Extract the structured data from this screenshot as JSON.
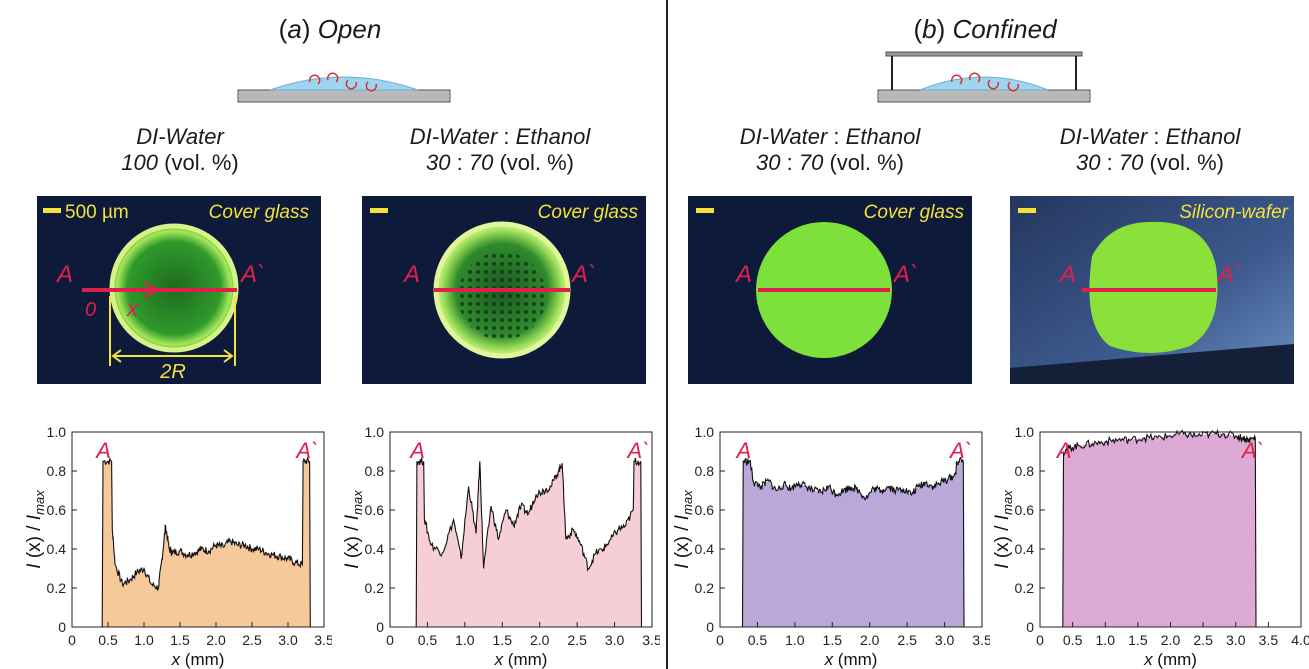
{
  "panels": [
    {
      "label_letter": "a",
      "label_word": "Open"
    },
    {
      "label_letter": "b",
      "label_word": "Confined"
    }
  ],
  "conditions": [
    {
      "line1_a": "DI-Water",
      "line1_sep": "",
      "line1_b": "",
      "line2_num": "100",
      "line2_sep": "",
      "line2_num2": "",
      "line2_unit": "(vol. %)"
    },
    {
      "line1_a": "DI-Water",
      "line1_sep": " : ",
      "line1_b": "Ethanol",
      "line2_num": "30",
      "line2_sep": " : ",
      "line2_num2": "70",
      "line2_unit": "(vol. %)"
    },
    {
      "line1_a": "DI-Water",
      "line1_sep": " : ",
      "line1_b": "Ethanol",
      "line2_num": "30",
      "line2_sep": " : ",
      "line2_num2": "70",
      "line2_unit": "(vol. %)"
    },
    {
      "line1_a": "DI-Water",
      "line1_sep": " : ",
      "line1_b": "Ethanol",
      "line2_num": "30",
      "line2_sep": " : ",
      "line2_num2": "70",
      "line2_unit": "(vol. %)"
    }
  ],
  "images": [
    {
      "substrate": "Cover glass",
      "scale_label": "500 µm",
      "label_left": "A",
      "label_right": "A`",
      "origin_label": "0",
      "x_label": "x",
      "diameter_label": "2R"
    },
    {
      "substrate": "Cover glass",
      "label_left": "A",
      "label_right": "A`"
    },
    {
      "substrate": "Cover glass",
      "label_left": "A",
      "label_right": "A`"
    },
    {
      "substrate": "Silicon-wafer",
      "label_left": "A",
      "label_right": "A`"
    }
  ],
  "colors": {
    "fluorescence_green": "#6fd62a",
    "line_red": "#e0204c",
    "label_yellow": "#f3e23a",
    "background_blue": "#0d1a3a",
    "fill_a": "#f6c99a",
    "fill_b": "#f6cfd6",
    "fill_c": "#b9a8d8",
    "fill_d": "#dcaad4"
  },
  "chart_data": [
    {
      "type": "area",
      "xlabel": "x (mm)",
      "ylabel": "I (x) / I_max",
      "ylabel_main": "I",
      "ylabel_x": " (x) / ",
      "ylabel_sub_main": "I",
      "ylabel_sub": "max",
      "xlim": [
        0,
        3.5
      ],
      "ylim": [
        0,
        1.0
      ],
      "xticks": [
        "0",
        "0.5",
        "1.0",
        "1.5",
        "2.0",
        "2.5",
        "3.0",
        "3.5"
      ],
      "yticks": [
        "0",
        "0.2",
        "0.4",
        "0.6",
        "0.8",
        "1.0"
      ],
      "marker_left": "A",
      "marker_right": "A`",
      "fill": "#f6c99a",
      "x": [
        0.42,
        0.43,
        0.55,
        0.56,
        0.6,
        0.7,
        0.8,
        0.9,
        1.0,
        1.1,
        1.2,
        1.25,
        1.3,
        1.35,
        1.4,
        1.5,
        1.6,
        1.7,
        1.8,
        1.9,
        2.0,
        2.1,
        2.2,
        2.3,
        2.4,
        2.5,
        2.6,
        2.7,
        2.8,
        2.9,
        3.0,
        3.1,
        3.2,
        3.21,
        3.3,
        3.31
      ],
      "y": [
        0,
        0.85,
        0.85,
        0.5,
        0.32,
        0.22,
        0.24,
        0.28,
        0.3,
        0.22,
        0.2,
        0.35,
        0.52,
        0.4,
        0.38,
        0.39,
        0.37,
        0.38,
        0.4,
        0.39,
        0.42,
        0.41,
        0.44,
        0.42,
        0.42,
        0.4,
        0.4,
        0.38,
        0.37,
        0.36,
        0.35,
        0.33,
        0.32,
        0.85,
        0.85,
        0
      ]
    },
    {
      "type": "area",
      "xlabel": "x (mm)",
      "ylabel": "I (x) / I_max",
      "ylabel_main": "I",
      "ylabel_x": " (x) / ",
      "ylabel_sub_main": "I",
      "ylabel_sub": "max",
      "xlim": [
        0,
        3.5
      ],
      "ylim": [
        0,
        1.0
      ],
      "xticks": [
        "0",
        "0.5",
        "1.0",
        "1.5",
        "2.0",
        "2.5",
        "3.0",
        "3.5"
      ],
      "yticks": [
        "0",
        "0.2",
        "0.4",
        "0.6",
        "0.8",
        "1.0"
      ],
      "marker_left": "A",
      "marker_right": "A`",
      "fill": "#f6cfd6",
      "x": [
        0.35,
        0.36,
        0.45,
        0.46,
        0.55,
        0.7,
        0.85,
        0.95,
        1.05,
        1.15,
        1.2,
        1.25,
        1.35,
        1.45,
        1.55,
        1.65,
        1.75,
        1.85,
        1.95,
        2.05,
        2.15,
        2.25,
        2.3,
        2.35,
        2.45,
        2.55,
        2.65,
        2.75,
        2.85,
        2.95,
        3.05,
        3.15,
        3.25,
        3.26,
        3.35,
        3.36
      ],
      "y": [
        0,
        0.85,
        0.85,
        0.55,
        0.42,
        0.38,
        0.55,
        0.35,
        0.72,
        0.48,
        0.85,
        0.3,
        0.62,
        0.45,
        0.6,
        0.52,
        0.62,
        0.58,
        0.68,
        0.7,
        0.72,
        0.8,
        0.84,
        0.45,
        0.5,
        0.42,
        0.3,
        0.38,
        0.4,
        0.45,
        0.5,
        0.52,
        0.6,
        0.85,
        0.85,
        0
      ]
    },
    {
      "type": "area",
      "xlabel": "x (mm)",
      "ylabel": "I (x) / I_max",
      "ylabel_main": "I",
      "ylabel_x": " (x) / ",
      "ylabel_sub_main": "I",
      "ylabel_sub": "max",
      "xlim": [
        0,
        3.5
      ],
      "ylim": [
        0,
        1.0
      ],
      "xticks": [
        "0",
        "0.5",
        "1.0",
        "1.5",
        "2.0",
        "2.5",
        "3.0",
        "3.5"
      ],
      "yticks": [
        "0",
        "0.2",
        "0.4",
        "0.6",
        "0.8",
        "1.0"
      ],
      "marker_left": "A",
      "marker_right": "A`",
      "fill": "#b9a8d8",
      "x": [
        0.3,
        0.31,
        0.4,
        0.45,
        0.55,
        0.65,
        0.75,
        0.85,
        0.95,
        1.05,
        1.15,
        1.25,
        1.35,
        1.45,
        1.55,
        1.65,
        1.75,
        1.85,
        1.95,
        2.05,
        2.15,
        2.25,
        2.35,
        2.45,
        2.55,
        2.65,
        2.75,
        2.85,
        2.95,
        3.05,
        3.15,
        3.16,
        3.25,
        3.26
      ],
      "y": [
        0,
        0.85,
        0.85,
        0.74,
        0.72,
        0.75,
        0.7,
        0.73,
        0.71,
        0.74,
        0.72,
        0.7,
        0.69,
        0.72,
        0.68,
        0.7,
        0.72,
        0.7,
        0.66,
        0.71,
        0.7,
        0.72,
        0.7,
        0.71,
        0.68,
        0.72,
        0.74,
        0.72,
        0.74,
        0.76,
        0.78,
        0.85,
        0.85,
        0
      ]
    },
    {
      "type": "area",
      "xlabel": "x (mm)",
      "ylabel": "I (x) / I_max",
      "ylabel_main": "I",
      "ylabel_x": " (x) / ",
      "ylabel_sub_main": "I",
      "ylabel_sub": "max",
      "xlim": [
        0,
        4.0
      ],
      "ylim": [
        0,
        1.0
      ],
      "xticks": [
        "0",
        "0.5",
        "1.0",
        "1.5",
        "2.0",
        "2.5",
        "3.0",
        "3.5",
        "4.0"
      ],
      "yticks": [
        "0",
        "0.2",
        "0.4",
        "0.6",
        "0.8",
        "1.0"
      ],
      "marker_left": "A",
      "marker_right": "A`",
      "fill": "#dcaad4",
      "x": [
        0.35,
        0.36,
        0.45,
        0.6,
        0.8,
        1.0,
        1.2,
        1.4,
        1.6,
        1.8,
        2.0,
        2.2,
        2.4,
        2.6,
        2.8,
        3.0,
        3.1,
        3.2,
        3.3,
        3.31
      ],
      "y": [
        0,
        0.9,
        0.92,
        0.93,
        0.94,
        0.95,
        0.96,
        0.96,
        0.97,
        0.97,
        0.98,
        0.99,
        0.98,
        0.99,
        0.99,
        0.98,
        0.97,
        0.96,
        0.97,
        0
      ]
    }
  ]
}
